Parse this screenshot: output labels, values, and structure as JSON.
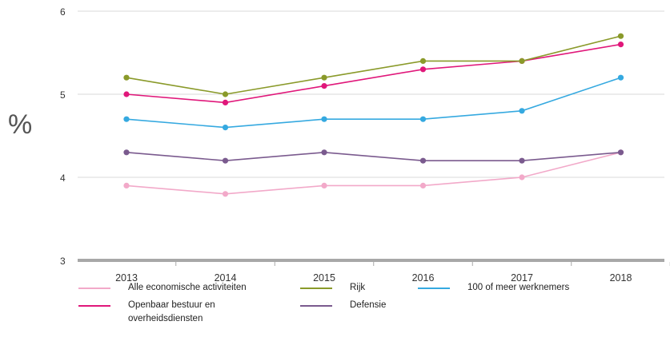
{
  "chart_data": {
    "type": "line",
    "title": "",
    "xlabel": "",
    "ylabel": "%",
    "ylim": [
      3,
      6
    ],
    "yticks": [
      "3",
      "4",
      "5",
      "6"
    ],
    "categories": [
      "2013",
      "2014",
      "2015",
      "2016",
      "2017",
      "2018"
    ],
    "grid": true,
    "legend_position": "bottom",
    "series": [
      {
        "name": "Alle economische activiteiten",
        "color": "#f2a9c9",
        "values": [
          3.9,
          3.8,
          3.9,
          3.9,
          4.0,
          4.3
        ]
      },
      {
        "name": "Openbaar bestuur en overheidsdiensten",
        "color": "#e0177a",
        "values": [
          5.0,
          4.9,
          5.1,
          5.3,
          5.4,
          5.6
        ]
      },
      {
        "name": "Rijk",
        "color": "#8a9a2a",
        "values": [
          5.2,
          5.0,
          5.2,
          5.4,
          5.4,
          5.7
        ]
      },
      {
        "name": "Defensie",
        "color": "#7a5a8e",
        "values": [
          4.3,
          4.2,
          4.3,
          4.2,
          4.2,
          4.3
        ]
      },
      {
        "name": "100 of meer werknemers",
        "color": "#35a9e0",
        "values": [
          4.7,
          4.6,
          4.7,
          4.7,
          4.8,
          5.2
        ]
      }
    ]
  }
}
